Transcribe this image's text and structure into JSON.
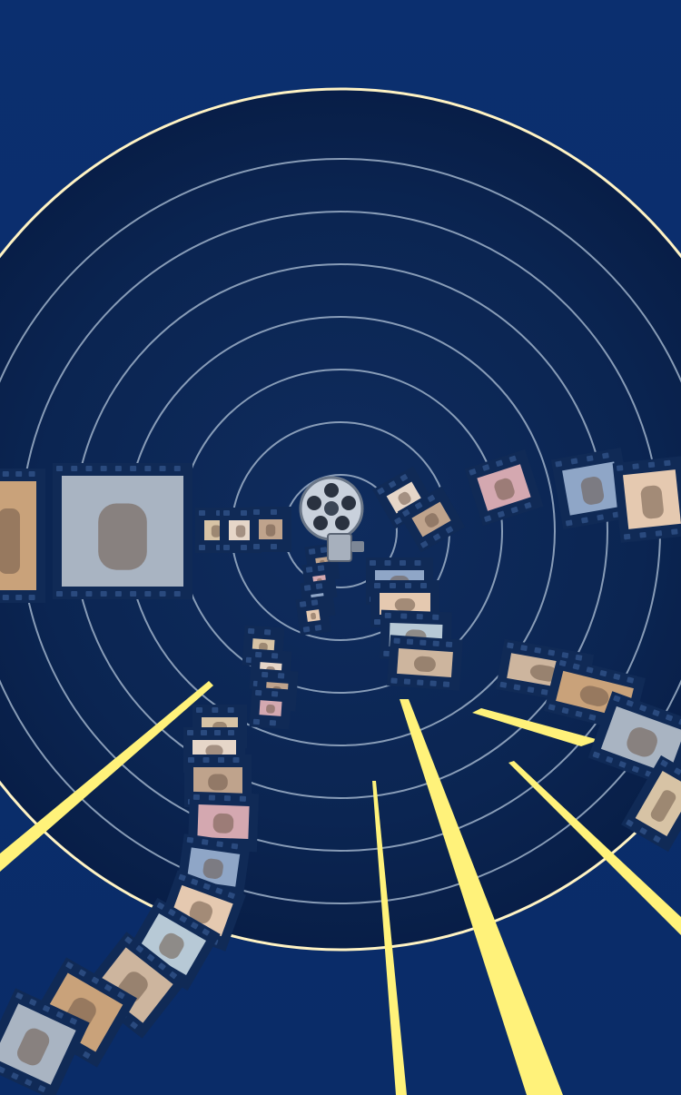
{
  "poster": {
    "background_color": "#0b2f6e",
    "tunnel_inner_color": "#0f2b5b",
    "tunnel_outer_color": "#0a2250",
    "ring_color": "#9fb2c9",
    "outer_ring_color": "#fff3c4",
    "beam_color": "#fff27a",
    "film_strip_color": "#102a56",
    "film_hole_color": "#2a4a7e"
  },
  "elements": {
    "projector": "film-projector-reel-icon",
    "strips": [
      {
        "name": "film-strip-left",
        "frames": [
          "photo-woman-portrait",
          "photo-child-on-bicycle-with-adult",
          "photo-family-small-1",
          "photo-family-small-2",
          "photo-family-small-3"
        ]
      },
      {
        "name": "film-strip-upper-right",
        "frames": [
          "photo-couple-indoor",
          "photo-family-purple",
          "photo-boy-walking",
          "photo-boy-portrait",
          "photo-boy-red-shirt"
        ]
      },
      {
        "name": "film-strip-center-down",
        "frames": [
          "photo-woman-1",
          "photo-woman-2",
          "photo-woman-3",
          "photo-woman-pink"
        ]
      },
      {
        "name": "film-strip-right-down",
        "frames": [
          "photo-family-rooftop",
          "photo-couple-selfie",
          "photo-child-vintage",
          "photo-boy-blue"
        ]
      },
      {
        "name": "film-strip-bottom-left",
        "frames": [
          "photo-family-a",
          "photo-family-b",
          "photo-family-c",
          "photo-family-d",
          "photo-family-e",
          "photo-family-f",
          "photo-family-g",
          "photo-woman-pink-sweater"
        ]
      }
    ]
  }
}
